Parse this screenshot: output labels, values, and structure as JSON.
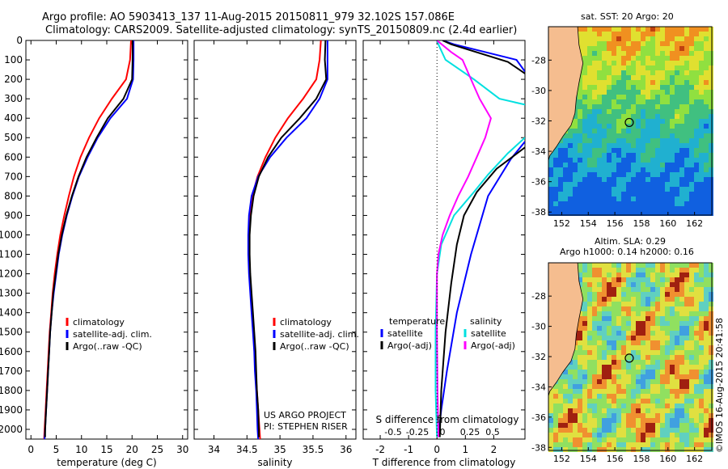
{
  "header": {
    "line1": "Argo profile: AO 5903413_137 11-Aug-2015 20150811_979 32.102S 157.086E",
    "line2": "Climatology: CARS2009. Satellite-adjusted climatology: synTS_20150809.nc (2.4d earlier)"
  },
  "colors": {
    "climatology": "#ff0000",
    "satellite": "#0000ff",
    "argo": "#000000",
    "salinity_satellite": "#00e0e0",
    "salinity_argo": "#ff00ff",
    "land": "#f5bd8f"
  },
  "chart_data": [
    {
      "type": "line",
      "id": "temperature",
      "xlabel": "temperature (deg C)",
      "xlim": [
        -1,
        31
      ],
      "ylim": [
        2050,
        0
      ],
      "xticks": [
        "0",
        "5",
        "10",
        "15",
        "20",
        "25",
        "30"
      ],
      "yticks": [
        "0",
        "100",
        "200",
        "300",
        "400",
        "500",
        "600",
        "700",
        "800",
        "900",
        "1000",
        "1100",
        "1200",
        "1300",
        "1400",
        "1500",
        "1600",
        "1700",
        "1800",
        "1900",
        "2000"
      ],
      "legend": [
        "climatology",
        "satellite-adj. clim.",
        "Argo(..raw -QC)"
      ],
      "series": [
        {
          "name": "climatology",
          "color": "#ff0000",
          "points": [
            [
              19.8,
              0
            ],
            [
              19.6,
              100
            ],
            [
              18.8,
              200
            ],
            [
              16,
              300
            ],
            [
              13.5,
              400
            ],
            [
              11.5,
              500
            ],
            [
              9.8,
              600
            ],
            [
              8.5,
              700
            ],
            [
              7.5,
              800
            ],
            [
              6.6,
              900
            ],
            [
              5.8,
              1000
            ],
            [
              5.2,
              1100
            ],
            [
              4.7,
              1200
            ],
            [
              4.3,
              1300
            ],
            [
              4,
              1400
            ],
            [
              3.7,
              1500
            ],
            [
              3.5,
              1600
            ],
            [
              3.3,
              1700
            ],
            [
              3.1,
              1800
            ],
            [
              2.9,
              1900
            ],
            [
              2.7,
              2000
            ],
            [
              2.6,
              2050
            ]
          ]
        },
        {
          "name": "satellite-adj. clim.",
          "color": "#0000ff",
          "points": [
            [
              20.3,
              0
            ],
            [
              20.3,
              100
            ],
            [
              20.2,
              200
            ],
            [
              19,
              300
            ],
            [
              15.7,
              400
            ],
            [
              13.2,
              500
            ],
            [
              11.2,
              600
            ],
            [
              9.5,
              700
            ],
            [
              8.2,
              800
            ],
            [
              7.1,
              900
            ],
            [
              6.2,
              1000
            ],
            [
              5.5,
              1100
            ],
            [
              5,
              1200
            ],
            [
              4.5,
              1300
            ],
            [
              4.1,
              1400
            ],
            [
              3.8,
              1500
            ],
            [
              3.6,
              1600
            ],
            [
              3.4,
              1700
            ],
            [
              3.2,
              1800
            ],
            [
              3,
              1900
            ],
            [
              2.8,
              2000
            ],
            [
              2.7,
              2050
            ]
          ]
        },
        {
          "name": "Argo(..raw -QC)",
          "color": "#000000",
          "points": [
            [
              20.1,
              0
            ],
            [
              20.1,
              100
            ],
            [
              20,
              200
            ],
            [
              18.3,
              300
            ],
            [
              15.2,
              400
            ],
            [
              13,
              500
            ],
            [
              11,
              600
            ],
            [
              9.4,
              700
            ],
            [
              8.1,
              800
            ],
            [
              7,
              900
            ],
            [
              6.1,
              1000
            ],
            [
              5.4,
              1100
            ],
            [
              4.9,
              1200
            ],
            [
              4.4,
              1300
            ],
            [
              4.1,
              1400
            ],
            [
              3.8,
              1500
            ],
            [
              3.6,
              1600
            ],
            [
              3.4,
              1700
            ],
            [
              3.2,
              1800
            ],
            [
              3,
              1900
            ],
            [
              2.8,
              2000
            ],
            [
              2.8,
              2040
            ]
          ]
        }
      ]
    },
    {
      "type": "line",
      "id": "salinity",
      "xlabel": "salinity",
      "xlim": [
        33.7,
        36.15
      ],
      "ylim": [
        2050,
        0
      ],
      "xticks": [
        "34",
        "34.5",
        "35",
        "35.5",
        "36"
      ],
      "legend": [
        "climatology",
        "satellite-adj. clim.",
        "Argo(..raw -QC)"
      ],
      "annotation": [
        "US ARGO PROJECT",
        "PI: STEPHEN RISER"
      ],
      "series": [
        {
          "name": "climatology",
          "color": "#ff0000",
          "points": [
            [
              35.62,
              0
            ],
            [
              35.6,
              100
            ],
            [
              35.55,
              200
            ],
            [
              35.35,
              300
            ],
            [
              35.12,
              400
            ],
            [
              34.93,
              500
            ],
            [
              34.78,
              600
            ],
            [
              34.66,
              700
            ],
            [
              34.58,
              800
            ],
            [
              34.55,
              900
            ],
            [
              34.53,
              1000
            ],
            [
              34.53,
              1100
            ],
            [
              34.54,
              1200
            ],
            [
              34.56,
              1300
            ],
            [
              34.58,
              1400
            ],
            [
              34.6,
              1500
            ],
            [
              34.62,
              1600
            ],
            [
              34.63,
              1700
            ],
            [
              34.65,
              1800
            ],
            [
              34.67,
              1900
            ],
            [
              34.69,
              2000
            ],
            [
              34.7,
              2050
            ]
          ]
        },
        {
          "name": "satellite-adj. clim.",
          "color": "#0000ff",
          "points": [
            [
              35.72,
              0
            ],
            [
              35.72,
              100
            ],
            [
              35.72,
              200
            ],
            [
              35.6,
              300
            ],
            [
              35.4,
              400
            ],
            [
              35.1,
              500
            ],
            [
              34.85,
              600
            ],
            [
              34.67,
              700
            ],
            [
              34.57,
              800
            ],
            [
              34.53,
              900
            ],
            [
              34.52,
              1000
            ],
            [
              34.52,
              1100
            ],
            [
              34.53,
              1200
            ],
            [
              34.55,
              1300
            ],
            [
              34.57,
              1400
            ],
            [
              34.59,
              1500
            ],
            [
              34.61,
              1600
            ],
            [
              34.62,
              1700
            ],
            [
              34.64,
              1800
            ],
            [
              34.65,
              1900
            ],
            [
              34.66,
              2000
            ],
            [
              34.67,
              2050
            ]
          ]
        },
        {
          "name": "Argo(..raw -QC)",
          "color": "#000000",
          "points": [
            [
              35.69,
              0
            ],
            [
              35.68,
              100
            ],
            [
              35.7,
              200
            ],
            [
              35.55,
              300
            ],
            [
              35.3,
              400
            ],
            [
              35.02,
              500
            ],
            [
              34.82,
              600
            ],
            [
              34.68,
              700
            ],
            [
              34.6,
              800
            ],
            [
              34.56,
              900
            ],
            [
              34.54,
              1000
            ],
            [
              34.54,
              1100
            ],
            [
              34.55,
              1200
            ],
            [
              34.57,
              1300
            ],
            [
              34.59,
              1400
            ],
            [
              34.61,
              1500
            ],
            [
              34.63,
              1600
            ],
            [
              34.64,
              1700
            ],
            [
              34.65,
              1800
            ],
            [
              34.67,
              1900
            ],
            [
              34.68,
              2000
            ],
            [
              34.68,
              2040
            ]
          ]
        }
      ]
    },
    {
      "type": "line",
      "id": "difference",
      "xlabel": "T difference from climatology",
      "xlabel_top": "S difference from climatology",
      "xlim": [
        -2.6,
        3.1
      ],
      "ylim": [
        2050,
        0
      ],
      "xticks": [
        "-2",
        "-1",
        "0",
        "1",
        "2"
      ],
      "xticks_top": [
        "-0.5",
        "-0.25",
        "0",
        "0.25",
        "0.5"
      ],
      "legend_temperature": {
        "title": "temperature",
        "items": [
          "satellite",
          "Argo(-adj)"
        ]
      },
      "legend_salinity": {
        "title": "salinity",
        "items": [
          "satellite",
          "Argo(-adj)"
        ]
      },
      "series": [
        {
          "name": "T satellite",
          "color": "#0000ff",
          "points": [
            [
              0.2,
              0
            ],
            [
              0.6,
              20
            ],
            [
              2.8,
              100
            ],
            [
              3.1,
              160
            ]
          ],
          "points2": [
            [
              3.1,
              520
            ],
            [
              2.6,
              610
            ],
            [
              1.8,
              800
            ],
            [
              1.2,
              1100
            ],
            [
              0.7,
              1400
            ],
            [
              0.35,
              1700
            ],
            [
              0.15,
              1900
            ],
            [
              0.05,
              2030
            ]
          ]
        },
        {
          "name": "T Argo(-adj)",
          "color": "#000000",
          "points": [
            [
              0.2,
              0
            ],
            [
              0.5,
              20
            ],
            [
              2.5,
              110
            ],
            [
              3.1,
              170
            ]
          ],
          "points2": [
            [
              3.1,
              550
            ],
            [
              2.1,
              660
            ],
            [
              1.4,
              780
            ],
            [
              0.95,
              900
            ],
            [
              0.7,
              1050
            ],
            [
              0.5,
              1250
            ],
            [
              0.3,
              1500
            ],
            [
              0.15,
              1800
            ],
            [
              0.1,
              2040
            ]
          ]
        },
        {
          "name": "S satellite",
          "color": "#00e0e0",
          "points": [
            [
              0,
              0
            ],
            [
              0.08,
              30
            ],
            [
              0.3,
              100
            ],
            [
              1.3,
              200
            ],
            [
              2.2,
              300
            ],
            [
              3.1,
              330
            ]
          ],
          "points2": [
            [
              3.1,
              500
            ],
            [
              2.5,
              580
            ],
            [
              1.8,
              690
            ],
            [
              1.3,
              780
            ],
            [
              0.6,
              900
            ],
            [
              0.15,
              1050
            ],
            [
              0,
              1200
            ],
            [
              -0.05,
              1500
            ],
            [
              -0.05,
              1800
            ],
            [
              0,
              2040
            ]
          ]
        },
        {
          "name": "S Argo(-adj)",
          "color": "#ff00ff",
          "points": [
            [
              0,
              0
            ],
            [
              0.5,
              60
            ],
            [
              0.9,
              100
            ],
            [
              1.2,
              200
            ],
            [
              1.5,
              300
            ],
            [
              1.9,
              400
            ],
            [
              1.7,
              500
            ],
            [
              1.4,
              600
            ],
            [
              1.1,
              700
            ],
            [
              0.75,
              800
            ],
            [
              0.45,
              900
            ],
            [
              0.2,
              1000
            ],
            [
              0.05,
              1100
            ],
            [
              0,
              1200
            ],
            [
              0,
              1500
            ],
            [
              0.02,
              1800
            ],
            [
              0.05,
              2040
            ]
          ]
        }
      ]
    }
  ],
  "maps": [
    {
      "id": "sst-map",
      "title": "sat. SST: 20 Argo: 20",
      "xticks": [
        "152",
        "154",
        "156",
        "158",
        "160",
        "162"
      ],
      "yticks": [
        "-28",
        "-30",
        "-32",
        "-34",
        "-36",
        "-38"
      ],
      "lon": [
        151,
        163.3
      ],
      "lat": [
        -25.8,
        -38.2
      ],
      "argo_position": [
        157.086,
        -32.102
      ]
    },
    {
      "id": "sla-map",
      "title_line1": "Altim. SLA: 0.29",
      "title_line2": "Argo h1000: 0.14 h2000: 0.16",
      "xticks": [
        "152",
        "154",
        "156",
        "158",
        "160",
        "162"
      ],
      "yticks": [
        "-28",
        "-30",
        "-32",
        "-34",
        "-36",
        "-38"
      ],
      "lon": [
        151,
        163.3
      ],
      "lat": [
        -25.8,
        -38.2
      ],
      "argo_position": [
        157.086,
        -32.102
      ]
    }
  ],
  "watermark": "©IMOS 16-Aug-2015 20:41:58"
}
